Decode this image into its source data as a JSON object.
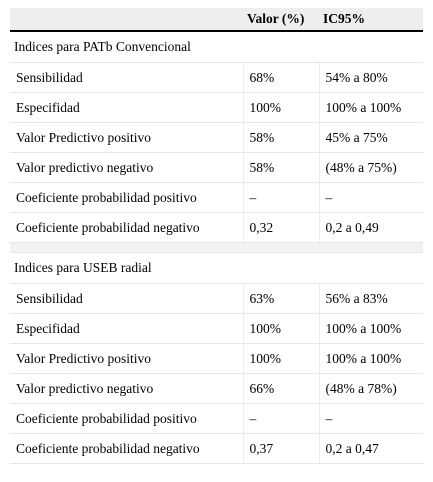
{
  "header": {
    "col1": "",
    "col2": "Valor (%)",
    "col3": "IC95%"
  },
  "sections": [
    {
      "title": "Indices para PATb Convencional",
      "rows": [
        {
          "label": "Sensibilidad",
          "value": "68%",
          "ci": "54% a 80%"
        },
        {
          "label": "Especifidad",
          "value": "100%",
          "ci": "100% a 100%"
        },
        {
          "label": "Valor Predictivo positivo",
          "value": "58%",
          "ci": "45% a 75%"
        },
        {
          "label": "Valor predictivo negativo",
          "value": "58%",
          "ci": "(48% a 75%)"
        },
        {
          "label": "Coeficiente probabilidad positivo",
          "value": "–",
          "ci": "–"
        },
        {
          "label": "Coeficiente probabilidad negativo",
          "value": "0,32",
          "ci": "0,2 a 0,49"
        }
      ]
    },
    {
      "title": "Indices para USEB radial",
      "rows": [
        {
          "label": "Sensibilidad",
          "value": "63%",
          "ci": "56% a 83%"
        },
        {
          "label": "Especifidad",
          "value": "100%",
          "ci": "100% a 100%"
        },
        {
          "label": "Valor Predictivo positivo",
          "value": "100%",
          "ci": "100% a 100%"
        },
        {
          "label": "Valor predictivo negativo",
          "value": "66%",
          "ci": "(48% a 78%)"
        },
        {
          "label": "Coeficiente probabilidad positivo",
          "value": "–",
          "ci": "–"
        },
        {
          "label": "Coeficiente probabilidad negativo",
          "value": "0,37",
          "ci": "0,2 a 0,47"
        }
      ]
    }
  ]
}
